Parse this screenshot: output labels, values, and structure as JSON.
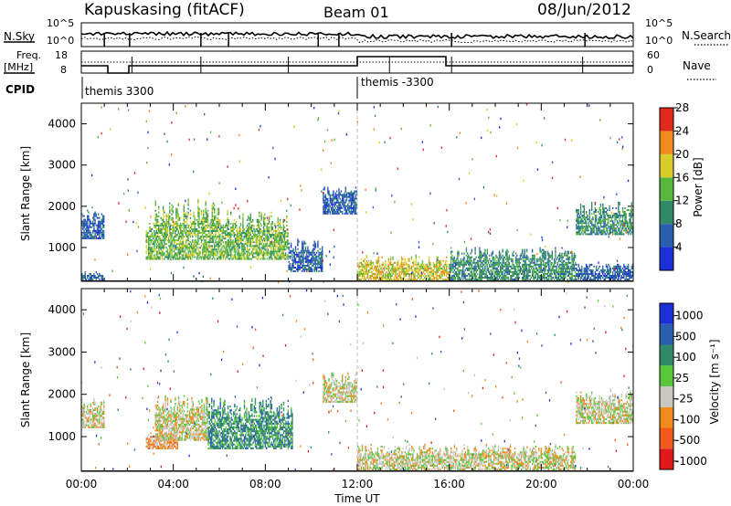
{
  "header": {
    "station": "Kapuskasing (fitACF)",
    "beam": "Beam 01",
    "date": "08/Jun/2012"
  },
  "summary_panels": {
    "nsky_label": "N.Sky",
    "nsky_ticks": [
      "10^5",
      "10^0"
    ],
    "nsearch_label": "N.Search",
    "nsearch_ticks": [
      "10^5",
      "10^0"
    ],
    "freq_label_1": "Freq.",
    "freq_label_2": "[MHz]",
    "freq_ticks": [
      "18",
      "8"
    ],
    "nave_label": "Nave",
    "nave_ticks": [
      "60",
      "0"
    ],
    "cpid_label": "CPID",
    "cpid_segments": [
      {
        "start_hour": 0,
        "end_hour": 12,
        "label": "themis 3300"
      },
      {
        "start_hour": 12,
        "end_hour": 24,
        "label": "themis -3300"
      }
    ]
  },
  "chart_data": [
    {
      "type": "heatmap",
      "name": "power",
      "title": "",
      "xlabel": "",
      "ylabel": "Slant Range [km]",
      "xlim": [
        0,
        24
      ],
      "ylim": [
        180,
        4500
      ],
      "yticks": [
        1000,
        2000,
        3000,
        4000
      ],
      "colorbar": {
        "label": "Power [dB]",
        "ticks": [
          "4",
          "8",
          "12",
          "16",
          "20",
          "24",
          "28"
        ],
        "colors": [
          "#1a2fd8",
          "#2a5fb0",
          "#2f8a68",
          "#58b83e",
          "#d8cc2a",
          "#f08a1c",
          "#e02a1c"
        ]
      },
      "regions": [
        {
          "t": [
            0.0,
            1.0
          ],
          "r": [
            1200,
            1900
          ],
          "level": 1
        },
        {
          "t": [
            0.0,
            1.0
          ],
          "r": [
            200,
            400
          ],
          "level": 1
        },
        {
          "t": [
            2.8,
            3.2
          ],
          "r": [
            700,
            1700
          ],
          "level": 3
        },
        {
          "t": [
            3.2,
            6.0
          ],
          "r": [
            700,
            2200
          ],
          "level": 3
        },
        {
          "t": [
            6.0,
            9.0
          ],
          "r": [
            700,
            1900
          ],
          "level": 3
        },
        {
          "t": [
            9.0,
            10.5
          ],
          "r": [
            400,
            1200
          ],
          "level": 1
        },
        {
          "t": [
            10.5,
            12.0
          ],
          "r": [
            1800,
            2500
          ],
          "level": 1
        },
        {
          "t": [
            12.0,
            16.0
          ],
          "r": [
            200,
            800
          ],
          "level": 4
        },
        {
          "t": [
            16.0,
            21.5
          ],
          "r": [
            200,
            1000
          ],
          "level": 2
        },
        {
          "t": [
            21.5,
            24.0
          ],
          "r": [
            1300,
            2100
          ],
          "level": 2
        },
        {
          "t": [
            21.5,
            24.0
          ],
          "r": [
            200,
            600
          ],
          "level": 1
        }
      ]
    },
    {
      "type": "heatmap",
      "name": "velocity",
      "title": "",
      "xlabel": "Time UT",
      "ylabel": "Slant Range [km]",
      "xlim": [
        0,
        24
      ],
      "ylim": [
        180,
        4500
      ],
      "yticks": [
        1000,
        2000,
        3000,
        4000
      ],
      "xticks": [
        "00:00",
        "04:00",
        "08:00",
        "12:00",
        "16:00",
        "20:00",
        "00:00"
      ],
      "colorbar": {
        "label": "Velocity [m s⁻¹]",
        "ticks": [
          "1000",
          "500",
          "100",
          "25",
          "-25",
          "-100",
          "-500",
          "-1000"
        ],
        "colors": [
          "#1a2fd8",
          "#2a5fb0",
          "#2f8a68",
          "#58c83a",
          "#c8c8c0",
          "#f08a1c",
          "#f05a1c",
          "#e01a1c"
        ]
      },
      "regions": [
        {
          "t": [
            0.0,
            1.0
          ],
          "r": [
            1200,
            1900
          ],
          "level": 4
        },
        {
          "t": [
            2.8,
            4.2
          ],
          "r": [
            700,
            1100
          ],
          "level": 5
        },
        {
          "t": [
            3.2,
            5.5
          ],
          "r": [
            900,
            2000
          ],
          "level": 4
        },
        {
          "t": [
            5.5,
            9.2
          ],
          "r": [
            700,
            1900
          ],
          "level": 2
        },
        {
          "t": [
            10.5,
            12.0
          ],
          "r": [
            1800,
            2500
          ],
          "level": 4
        },
        {
          "t": [
            12.0,
            21.5
          ],
          "r": [
            200,
            800
          ],
          "level": 4
        },
        {
          "t": [
            21.5,
            24.0
          ],
          "r": [
            1300,
            2100
          ],
          "level": 4
        }
      ]
    }
  ]
}
